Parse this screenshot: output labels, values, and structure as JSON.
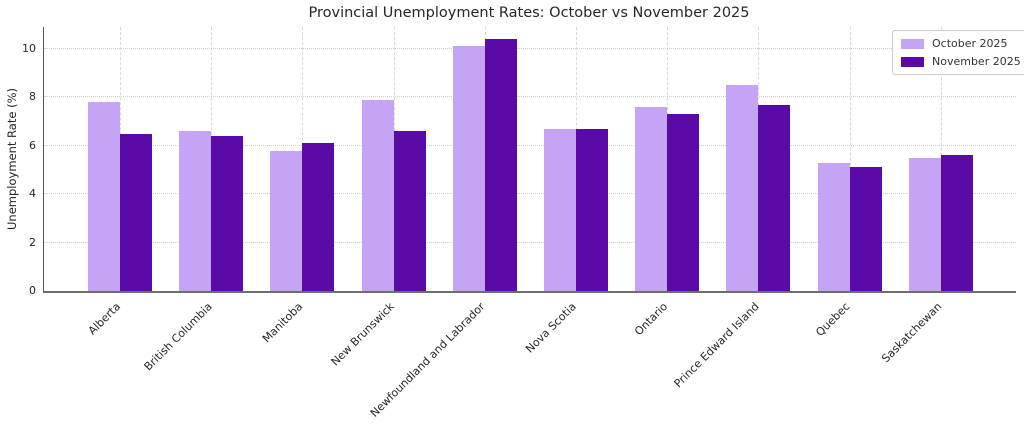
{
  "chart_data": {
    "type": "bar",
    "title": "Provincial Unemployment Rates: October vs November 2025",
    "xlabel": "",
    "ylabel": "Unemployment Rate (%)",
    "categories": [
      "Alberta",
      "British Columbia",
      "Manitoba",
      "New Brunswick",
      "Newfoundland and Labrador",
      "Nova Scotia",
      "Ontario",
      "Prince Edward Island",
      "Quebec",
      "Saskatchewan"
    ],
    "series": [
      {
        "name": "October 2025",
        "color": "#c5a4f5",
        "values": [
          7.8,
          6.6,
          5.8,
          7.9,
          10.1,
          6.7,
          7.6,
          8.5,
          5.3,
          5.5
        ]
      },
      {
        "name": "November 2025",
        "color": "#5a0aa6",
        "values": [
          6.5,
          6.4,
          6.1,
          6.6,
          10.4,
          6.7,
          7.3,
          7.7,
          5.1,
          5.6
        ]
      }
    ],
    "yticks": [
      0,
      2,
      4,
      6,
      8,
      10
    ],
    "ylim": [
      0,
      10.9
    ],
    "grid": true,
    "legend_position": "upper right"
  }
}
